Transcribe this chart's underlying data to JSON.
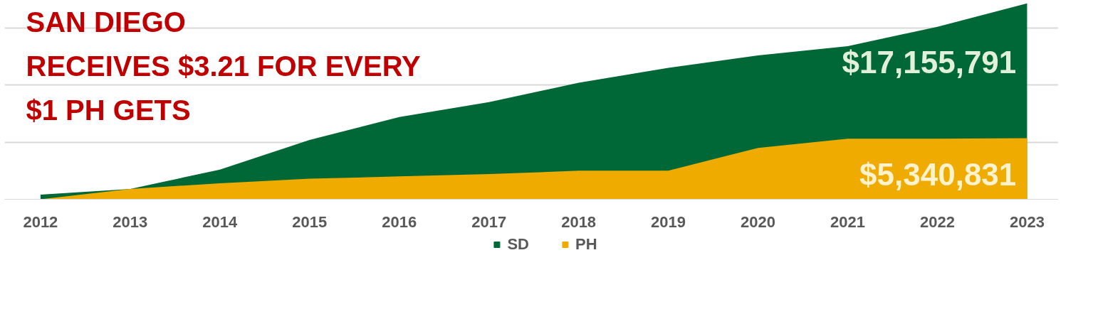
{
  "chart_data": {
    "type": "area",
    "title": "SAN DIEGO\nRECEIVES $3.21 FOR EVERY\n$1 PH GETS",
    "categories": [
      "2012",
      "2013",
      "2014",
      "2015",
      "2016",
      "2017",
      "2018",
      "2019",
      "2020",
      "2021",
      "2022",
      "2023"
    ],
    "series": [
      {
        "name": "SD",
        "color": "#006837",
        "values": [
          400000,
          900000,
          2600000,
          5200000,
          7200000,
          8500000,
          10200000,
          11500000,
          12600000,
          13400000,
          15100000,
          17155791
        ],
        "value_labels": [
          null,
          null,
          null,
          null,
          null,
          null,
          null,
          null,
          null,
          null,
          null,
          "$17,155,791"
        ]
      },
      {
        "name": "PH",
        "color": "#f0ab00",
        "values": [
          0,
          900000,
          1400000,
          1800000,
          2000000,
          2200000,
          2500000,
          2500000,
          4500000,
          5300000,
          5300000,
          5340831
        ],
        "value_labels": [
          null,
          null,
          null,
          null,
          null,
          null,
          null,
          null,
          null,
          null,
          null,
          "$5,340,831"
        ]
      }
    ],
    "yticks": [
      {
        "value": 0,
        "label": null
      },
      {
        "value": 5000000,
        "label": null
      },
      {
        "value": 10000000,
        "label": null
      },
      {
        "value": 15000000,
        "label": null
      }
    ],
    "grid": "y",
    "legend": "bottom",
    "tick_labels": "x"
  }
}
